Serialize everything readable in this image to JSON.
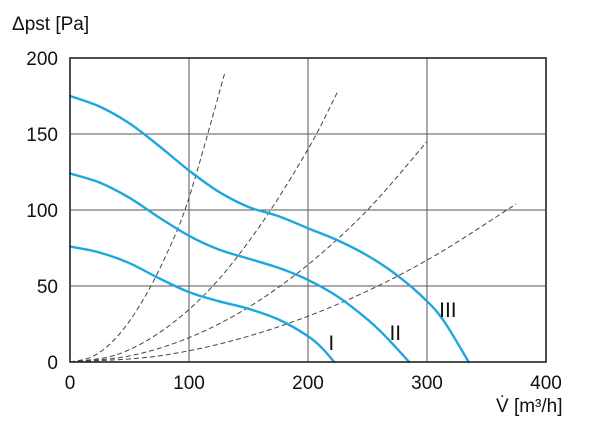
{
  "chart_data": {
    "type": "line",
    "title": "",
    "xlabel": "V̇ [m³/h]",
    "ylabel": "Δpst [Pa]",
    "xlim": [
      0,
      400
    ],
    "ylim": [
      0,
      200
    ],
    "xticks": [
      "0",
      "100",
      "200",
      "300",
      "400"
    ],
    "yticks": [
      "0",
      "50",
      "100",
      "150",
      "200"
    ],
    "grid": true,
    "fan_color": "#1ea6df",
    "series": [
      {
        "name": "I",
        "x": [
          0,
          25,
          50,
          75,
          100,
          125,
          150,
          175,
          200,
          212,
          222
        ],
        "y": [
          76,
          72,
          65,
          55,
          46,
          40,
          35,
          28,
          17,
          9,
          0
        ]
      },
      {
        "name": "II",
        "x": [
          0,
          25,
          50,
          75,
          100,
          125,
          150,
          175,
          200,
          225,
          250,
          265,
          285
        ],
        "y": [
          124,
          118,
          108,
          95,
          83,
          74,
          68,
          62,
          54,
          43,
          28,
          17,
          0
        ]
      },
      {
        "name": "III",
        "x": [
          0,
          25,
          50,
          75,
          100,
          125,
          150,
          175,
          200,
          225,
          250,
          275,
          300,
          315,
          335
        ],
        "y": [
          175,
          168,
          157,
          142,
          126,
          112,
          102,
          96,
          88,
          80,
          70,
          57,
          40,
          26,
          0
        ]
      }
    ],
    "system_curves": [
      {
        "x": [
          0,
          20,
          40,
          60,
          80,
          100,
          130
        ],
        "y": [
          0,
          4,
          17,
          39,
          69,
          108,
          190
        ]
      },
      {
        "x": [
          0,
          40,
          80,
          120,
          160,
          200,
          225
        ],
        "y": [
          0,
          5,
          22,
          50,
          90,
          140,
          178
        ]
      },
      {
        "x": [
          0,
          50,
          100,
          150,
          200,
          250,
          300
        ],
        "y": [
          0,
          4,
          16,
          36,
          64,
          100,
          145
        ]
      },
      {
        "x": [
          0,
          75,
          150,
          225,
          300,
          375
        ],
        "y": [
          0,
          4,
          17,
          38,
          67,
          104
        ]
      }
    ]
  }
}
